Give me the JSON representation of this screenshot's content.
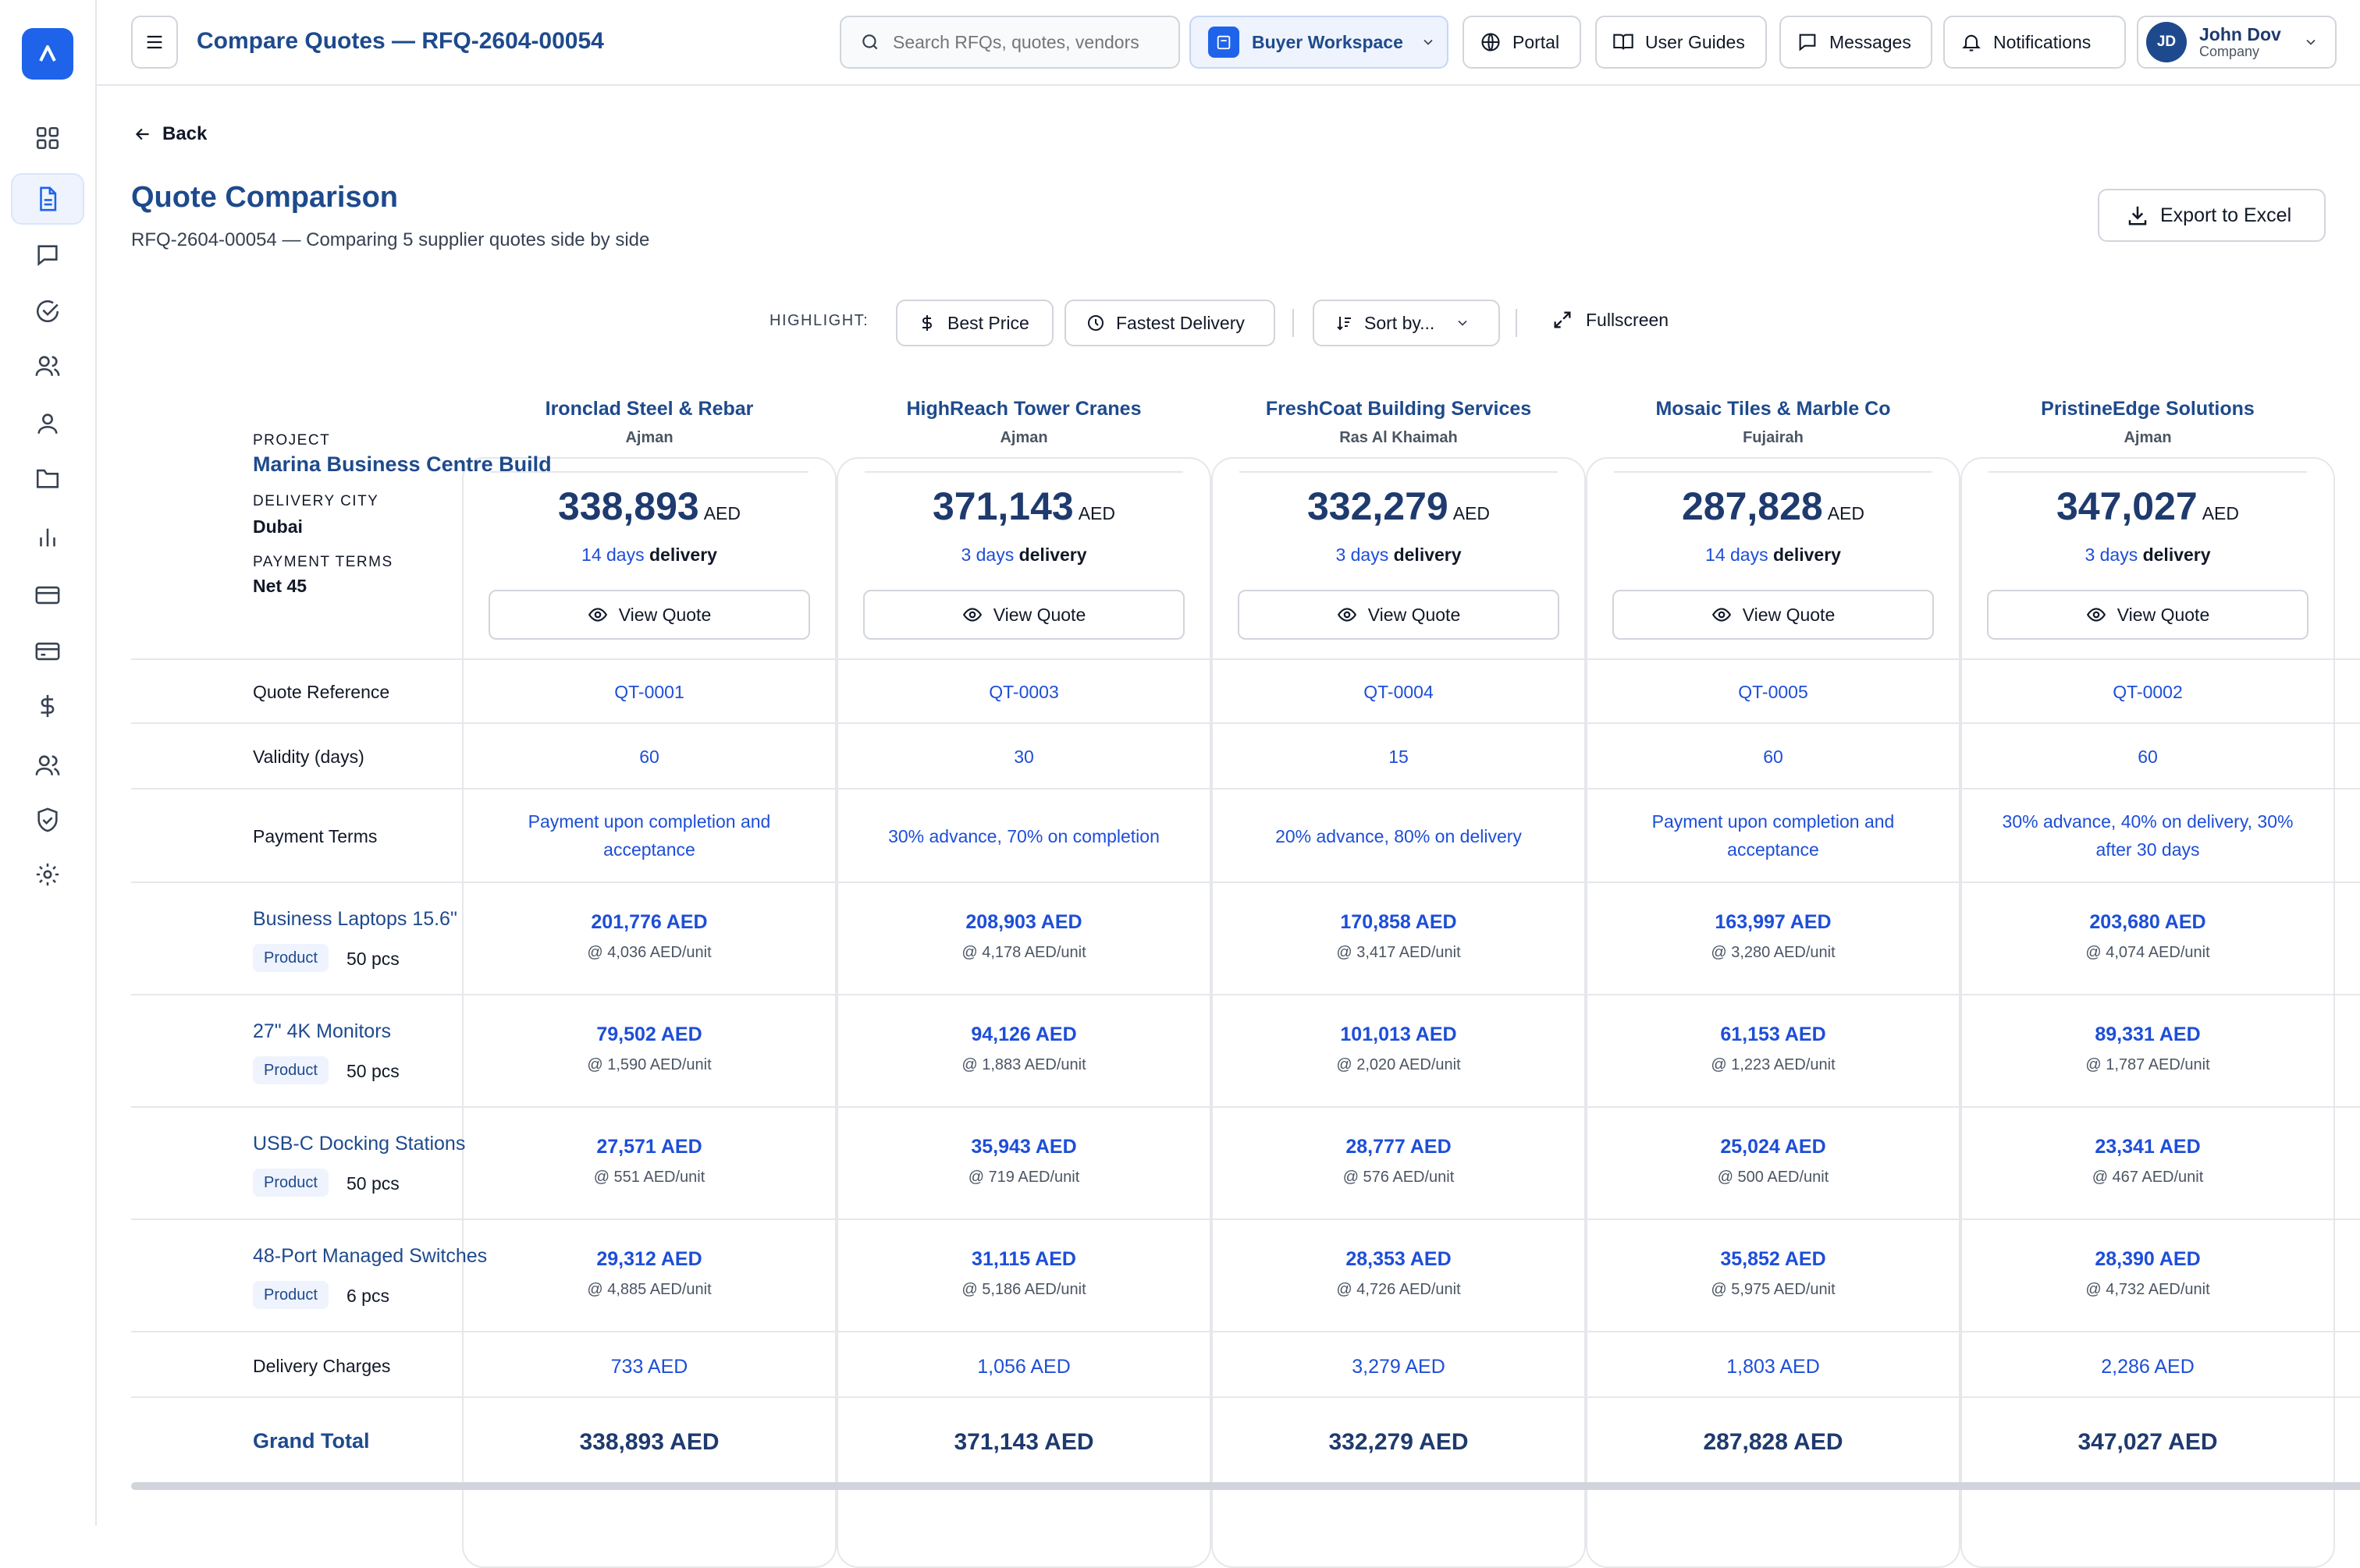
{
  "header": {
    "title": "Compare Quotes — RFQ-2604-00054",
    "search_placeholder": "Search RFQs, quotes, vendors",
    "workspace": "Buyer Workspace",
    "portal": "Portal",
    "user_guides": "User Guides",
    "messages": "Messages",
    "notifications": "Notifications",
    "user_name": "John Dov",
    "user_role": "Company",
    "user_initials": "JD"
  },
  "page": {
    "back": "Back",
    "title": "Quote Comparison",
    "subtitle": "RFQ-2604-00054 — Comparing 5 supplier quotes side by side",
    "export": "Export to Excel"
  },
  "toolbar": {
    "highlight_label": "HIGHLIGHT:",
    "best_price": "Best Price",
    "fastest_delivery": "Fastest Delivery",
    "sort_by": "Sort by...",
    "fullscreen": "Fullscreen"
  },
  "project": {
    "project_label": "PROJECT",
    "project_name": "Marina Business Centre Build",
    "city_label": "DELIVERY CITY",
    "city": "Dubai",
    "terms_label": "PAYMENT TERMS",
    "terms": "Net 45"
  },
  "labels": {
    "view_quote": "View Quote",
    "delivery_word": "delivery",
    "quote_reference": "Quote Reference",
    "validity": "Validity (days)",
    "payment_terms": "Payment Terms",
    "delivery_charges": "Delivery Charges",
    "grand_total": "Grand Total",
    "product_badge": "Product"
  },
  "items": [
    {
      "name": "Business Laptops 15.6\"",
      "qty": "50 pcs"
    },
    {
      "name": "27\" 4K Monitors",
      "qty": "50 pcs"
    },
    {
      "name": "USB-C Docking Stations",
      "qty": "50 pcs"
    },
    {
      "name": "48-Port Managed Switches",
      "qty": "6 pcs"
    }
  ],
  "vendors": [
    {
      "name": "Ironclad Steel & Rebar",
      "city": "Ajman",
      "total": "338,893",
      "currency": "AED",
      "days": "14 days",
      "ref": "QT-0001",
      "validity": "60",
      "terms": [
        "Payment upon completion and",
        "acceptance"
      ],
      "prices": [
        {
          "amount": "201,776 AED",
          "unit": "@ 4,036 AED/unit"
        },
        {
          "amount": "79,502 AED",
          "unit": "@ 1,590 AED/unit"
        },
        {
          "amount": "27,571 AED",
          "unit": "@ 551 AED/unit"
        },
        {
          "amount": "29,312 AED",
          "unit": "@ 4,885 AED/unit"
        }
      ],
      "delivery_charges": "733 AED",
      "grand_total": "338,893 AED"
    },
    {
      "name": "HighReach Tower Cranes",
      "city": "Ajman",
      "total": "371,143",
      "currency": "AED",
      "days": "3 days",
      "ref": "QT-0003",
      "validity": "30",
      "terms": [
        "30% advance, 70% on completion",
        ""
      ],
      "prices": [
        {
          "amount": "208,903 AED",
          "unit": "@ 4,178 AED/unit"
        },
        {
          "amount": "94,126 AED",
          "unit": "@ 1,883 AED/unit"
        },
        {
          "amount": "35,943 AED",
          "unit": "@ 719 AED/unit"
        },
        {
          "amount": "31,115 AED",
          "unit": "@ 5,186 AED/unit"
        }
      ],
      "delivery_charges": "1,056 AED",
      "grand_total": "371,143 AED"
    },
    {
      "name": "FreshCoat Building Services",
      "city": "Ras Al Khaimah",
      "total": "332,279",
      "currency": "AED",
      "days": "3 days",
      "ref": "QT-0004",
      "validity": "15",
      "terms": [
        "20% advance, 80% on delivery",
        ""
      ],
      "prices": [
        {
          "amount": "170,858 AED",
          "unit": "@ 3,417 AED/unit"
        },
        {
          "amount": "101,013 AED",
          "unit": "@ 2,020 AED/unit"
        },
        {
          "amount": "28,777 AED",
          "unit": "@ 576 AED/unit"
        },
        {
          "amount": "28,353 AED",
          "unit": "@ 4,726 AED/unit"
        }
      ],
      "delivery_charges": "3,279 AED",
      "grand_total": "332,279 AED"
    },
    {
      "name": "Mosaic Tiles & Marble Co",
      "city": "Fujairah",
      "total": "287,828",
      "currency": "AED",
      "days": "14 days",
      "ref": "QT-0005",
      "validity": "60",
      "terms": [
        "Payment upon completion and",
        "acceptance"
      ],
      "prices": [
        {
          "amount": "163,997 AED",
          "unit": "@ 3,280 AED/unit"
        },
        {
          "amount": "61,153 AED",
          "unit": "@ 1,223 AED/unit"
        },
        {
          "amount": "25,024 AED",
          "unit": "@ 500 AED/unit"
        },
        {
          "amount": "35,852 AED",
          "unit": "@ 5,975 AED/unit"
        }
      ],
      "delivery_charges": "1,803 AED",
      "grand_total": "287,828 AED"
    },
    {
      "name": "PristineEdge Solutions",
      "city": "Ajman",
      "total": "347,027",
      "currency": "AED",
      "days": "3 days",
      "ref": "QT-0002",
      "validity": "60",
      "terms": [
        "30% advance, 40% on delivery, 30%",
        "after 30 days"
      ],
      "prices": [
        {
          "amount": "203,680 AED",
          "unit": "@ 4,074 AED/unit"
        },
        {
          "amount": "89,331 AED",
          "unit": "@ 1,787 AED/unit"
        },
        {
          "amount": "23,341 AED",
          "unit": "@ 467 AED/unit"
        },
        {
          "amount": "28,390 AED",
          "unit": "@ 4,732 AED/unit"
        }
      ],
      "delivery_charges": "2,286 AED",
      "grand_total": "347,027 AED"
    }
  ]
}
